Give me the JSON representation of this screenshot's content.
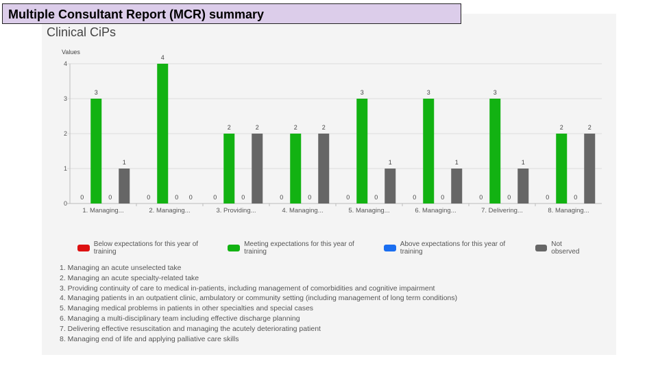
{
  "slide_title": "Multiple Consultant Report (MCR) summary",
  "chart_title": "Clinical CiPs",
  "chart_data": {
    "type": "bar",
    "ylabel": "Values",
    "ylim": [
      0,
      4
    ],
    "yticks": [
      0,
      1,
      2,
      3,
      4
    ],
    "categories": [
      "1. Managing...",
      "2. Managing...",
      "3. Providing...",
      "4. Managing...",
      "5. Managing...",
      "6. Managing...",
      "7. Delivering...",
      "8. Managing..."
    ],
    "series": [
      {
        "name": "Below expectations for this year of training",
        "color": "#dd1111",
        "values": [
          0,
          0,
          0,
          0,
          0,
          0,
          0,
          0
        ]
      },
      {
        "name": "Meeting expectations for this year of training",
        "color": "#12b212",
        "values": [
          3,
          4,
          2,
          2,
          3,
          3,
          3,
          2
        ]
      },
      {
        "name": "Above expectations for this year of training",
        "color": "#1a6ef0",
        "values": [
          0,
          0,
          0,
          0,
          0,
          0,
          0,
          0
        ]
      },
      {
        "name": "Not observed",
        "color": "#666666",
        "values": [
          1,
          0,
          2,
          2,
          1,
          1,
          1,
          2
        ]
      }
    ]
  },
  "legend": [
    {
      "label": "Below expectations for this year of training",
      "color": "#dd1111"
    },
    {
      "label": "Meeting expectations for this year of training",
      "color": "#12b212"
    },
    {
      "label": "Above expectations for this year of training",
      "color": "#1a6ef0"
    },
    {
      "label": "Not observed",
      "color": "#666666"
    }
  ],
  "notes": [
    "1. Managing an acute unselected take",
    "2. Managing an acute specialty-related take",
    "3. Providing continuity of care to medical in-patients, including management of comorbidities and cognitive impairment",
    "4. Managing patients in an outpatient clinic, ambulatory or community setting (including management of long term conditions)",
    "5. Managing medical problems in patients in other specialties and special cases",
    "6. Managing a multi-disciplinary team including effective discharge planning",
    "7. Delivering effective resuscitation and managing the acutely deteriorating patient",
    "8. Managing end of life and applying palliative care skills"
  ]
}
